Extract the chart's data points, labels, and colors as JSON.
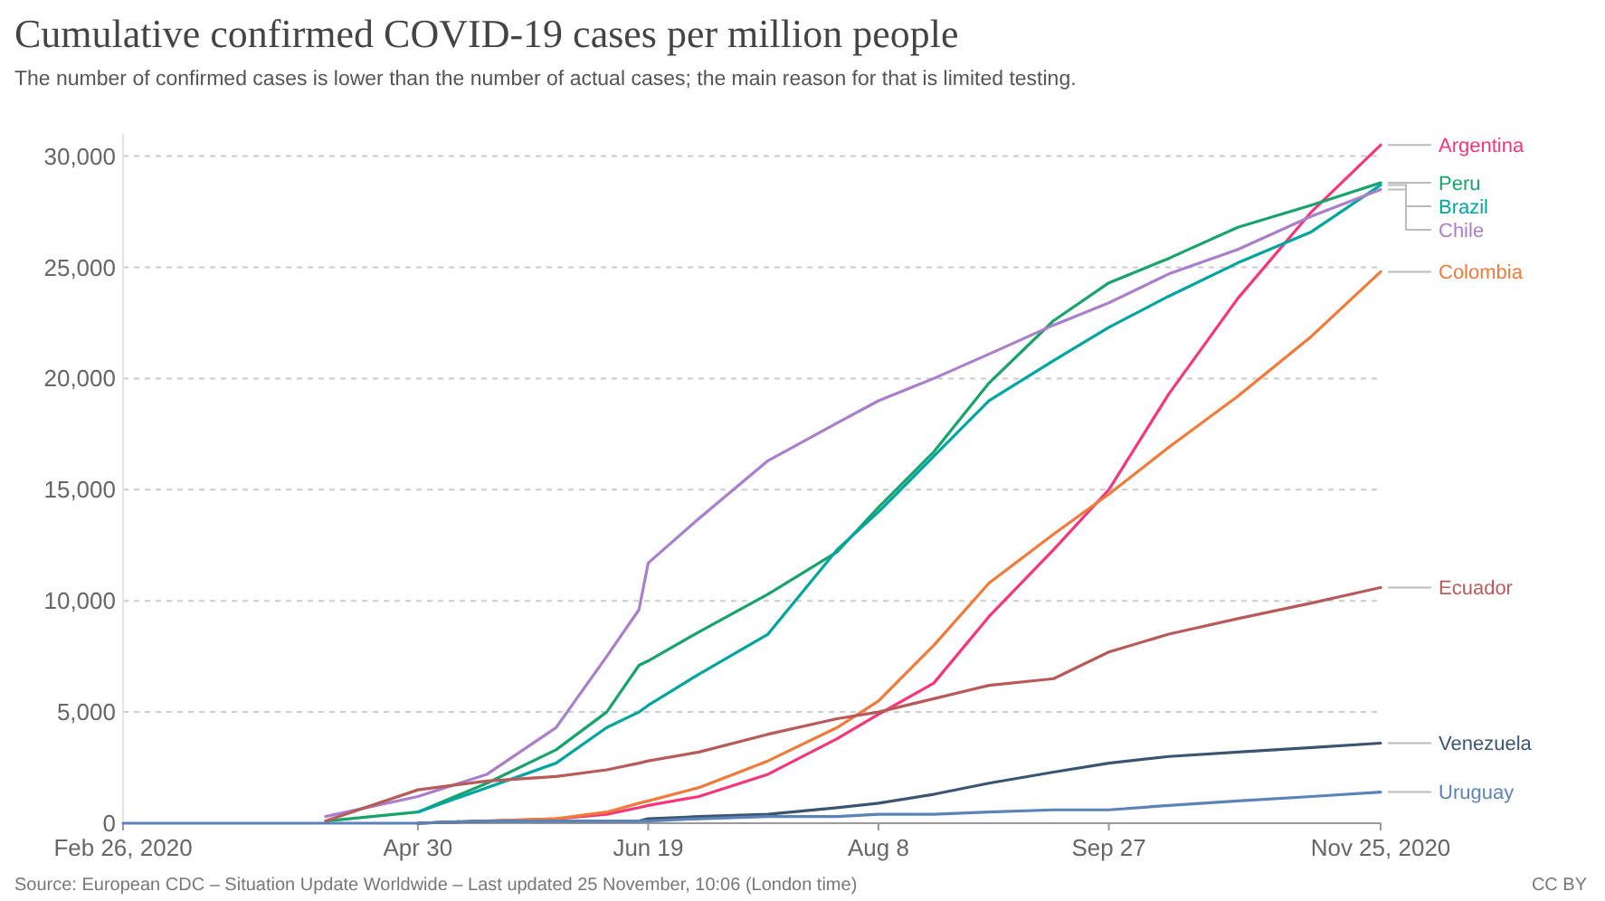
{
  "chart_data": {
    "type": "line",
    "title": "Cumulative confirmed COVID-19 cases per million people",
    "subtitle": "The number of confirmed cases is lower than the number of actual cases; the main reason for that is limited testing.",
    "x": [
      "2020-02-26",
      "2020-03-20",
      "2020-04-10",
      "2020-04-30",
      "2020-05-15",
      "2020-05-30",
      "2020-06-10",
      "2020-06-17",
      "2020-06-19",
      "2020-06-30",
      "2020-07-15",
      "2020-07-30",
      "2020-08-08",
      "2020-08-20",
      "2020-09-01",
      "2020-09-15",
      "2020-09-27",
      "2020-10-10",
      "2020-10-25",
      "2020-11-10",
      "2020-11-25"
    ],
    "series": [
      {
        "name": "Argentina",
        "color": "#f7357a",
        "values": [
          null,
          null,
          null,
          0,
          100,
          200,
          400,
          700,
          800,
          1200,
          2200,
          3800,
          4900,
          6300,
          9300,
          12300,
          15000,
          19300,
          23600,
          27500,
          30500
        ]
      },
      {
        "name": "Peru",
        "color": "#18a36a",
        "values": [
          null,
          null,
          100,
          500,
          1800,
          3300,
          5000,
          7100,
          7300,
          8600,
          10300,
          12200,
          14200,
          16700,
          19800,
          22600,
          24300,
          25400,
          26800,
          27800,
          28800
        ]
      },
      {
        "name": "Brazil",
        "color": "#00a5a0",
        "values": [
          null,
          null,
          null,
          500,
          1600,
          2700,
          4300,
          5000,
          5300,
          6700,
          8500,
          12300,
          14000,
          16500,
          19000,
          20800,
          22300,
          23700,
          25200,
          26600,
          28700
        ]
      },
      {
        "name": "Chile",
        "color": "#a97fc9",
        "values": [
          null,
          null,
          300,
          1200,
          2200,
          4300,
          7500,
          9600,
          11700,
          13700,
          16300,
          18000,
          19000,
          20000,
          21100,
          22400,
          23400,
          24700,
          25800,
          27300,
          28500
        ]
      },
      {
        "name": "Colombia",
        "color": "#f07a3a",
        "values": [
          null,
          null,
          null,
          0,
          100,
          200,
          500,
          900,
          1000,
          1600,
          2800,
          4300,
          5500,
          8000,
          10800,
          13000,
          14800,
          16900,
          19200,
          21900,
          24800
        ]
      },
      {
        "name": "Ecuador",
        "color": "#b85a5a",
        "values": [
          null,
          null,
          100,
          1500,
          1900,
          2100,
          2400,
          2700,
          2800,
          3200,
          4000,
          4700,
          5000,
          5600,
          6200,
          6500,
          7700,
          8500,
          9200,
          9900,
          10600
        ]
      },
      {
        "name": "Venezuela",
        "color": "#3b5570",
        "values": [
          null,
          null,
          null,
          0,
          100,
          100,
          100,
          100,
          200,
          300,
          400,
          700,
          900,
          1300,
          1800,
          2300,
          2700,
          3000,
          3200,
          3400,
          3600
        ]
      },
      {
        "name": "Uruguay",
        "color": "#5b83b8",
        "values": [
          0,
          0,
          0,
          0,
          100,
          100,
          100,
          100,
          100,
          200,
          300,
          300,
          400,
          400,
          500,
          600,
          600,
          800,
          1000,
          1200,
          1400
        ]
      }
    ],
    "xlim": [
      "2020-02-26",
      "2020-11-25"
    ],
    "xticks": [
      {
        "value": "2020-02-26",
        "label": "Feb 26, 2020"
      },
      {
        "value": "2020-04-30",
        "label": "Apr 30"
      },
      {
        "value": "2020-06-19",
        "label": "Jun 19"
      },
      {
        "value": "2020-08-08",
        "label": "Aug 8"
      },
      {
        "value": "2020-09-27",
        "label": "Sep 27"
      },
      {
        "value": "2020-11-25",
        "label": "Nov 25, 2020"
      }
    ],
    "ylim": [
      0,
      31000
    ],
    "yticks": [
      {
        "value": 0,
        "label": "0"
      },
      {
        "value": 5000,
        "label": "5,000"
      },
      {
        "value": 10000,
        "label": "10,000"
      },
      {
        "value": 15000,
        "label": "15,000"
      },
      {
        "value": 20000,
        "label": "20,000"
      },
      {
        "value": 25000,
        "label": "25,000"
      },
      {
        "value": 30000,
        "label": "30,000"
      }
    ],
    "grid": "y",
    "legend": false,
    "line_style": "solid",
    "marker": "none",
    "annotations": [
      "Source: European CDC – Situation Update Worldwide – Last updated 25 November, 10:06 (London time)",
      "CC BY"
    ]
  }
}
